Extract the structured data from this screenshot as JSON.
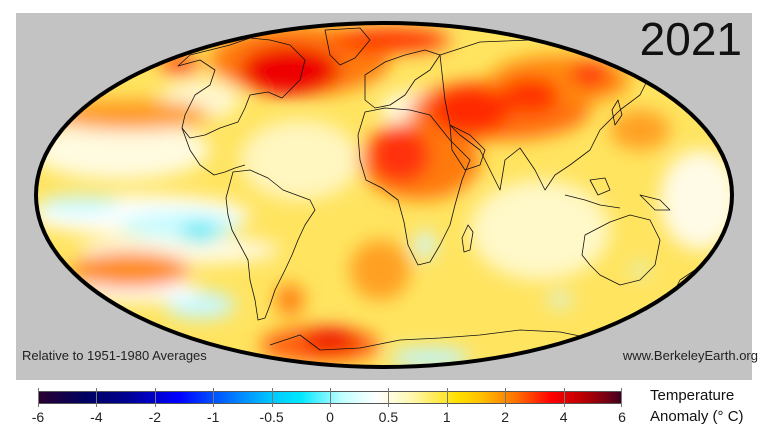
{
  "title": {
    "year": "2021"
  },
  "captions": {
    "baseline": "Relative to 1951-1980 Averages",
    "source": "www.BerkeleyEarth.org"
  },
  "legend": {
    "title_line1": "Temperature",
    "title_line2": "Anomaly (° C)",
    "ticks": [
      "-6",
      "-4",
      "-2",
      "-1",
      "-0.5",
      "0",
      "0.5",
      "1",
      "2",
      "4",
      "6"
    ],
    "colors": [
      "#2a0030",
      "#000080",
      "#0000ff",
      "#00c8ff",
      "#e8ffff",
      "#ffffff",
      "#fff8b0",
      "#ffd700",
      "#ff8c00",
      "#ff0000",
      "#8b0000",
      "#4a0018"
    ]
  },
  "map": {
    "projection": "Mollweide",
    "background_color": "#c3c3c3",
    "outline_color": "#000000"
  },
  "chart_data": {
    "type": "heatmap",
    "title": "2021",
    "subtitle": "Relative to 1951-1980 Averages",
    "colorbar_label": "Temperature Anomaly (° C)",
    "colorbar_ticks": [
      -6,
      -4,
      -2,
      -1,
      -0.5,
      0,
      0.5,
      1,
      2,
      4,
      6
    ],
    "colorbar_range": [
      -6,
      6
    ],
    "regions": [
      {
        "name": "Northeastern Canada / Greenland",
        "anomaly_approx": 2.5
      },
      {
        "name": "Northern Africa / Sahara",
        "anomaly_approx": 2
      },
      {
        "name": "Middle East / Central Asia",
        "anomaly_approx": 2.5
      },
      {
        "name": "Eastern Siberia",
        "anomaly_approx": 2
      },
      {
        "name": "Northern China",
        "anomaly_approx": 2
      },
      {
        "name": "North Pacific",
        "anomaly_approx": 1.5
      },
      {
        "name": "Tropical Eastern Pacific (La Niña)",
        "anomaly_approx": -0.7
      },
      {
        "name": "South Pacific subtropics",
        "anomaly_approx": 1.5
      },
      {
        "name": "Southern Africa",
        "anomaly_approx": -0.3
      },
      {
        "name": "Antarctic Peninsula / Weddell",
        "anomaly_approx": 2.5
      },
      {
        "name": "Southeastern Australia",
        "anomaly_approx": -0.3
      },
      {
        "name": "South America",
        "anomaly_approx": 1
      },
      {
        "name": "Indian Ocean",
        "anomaly_approx": 0.7
      }
    ],
    "source": "www.BerkeleyEarth.org"
  }
}
